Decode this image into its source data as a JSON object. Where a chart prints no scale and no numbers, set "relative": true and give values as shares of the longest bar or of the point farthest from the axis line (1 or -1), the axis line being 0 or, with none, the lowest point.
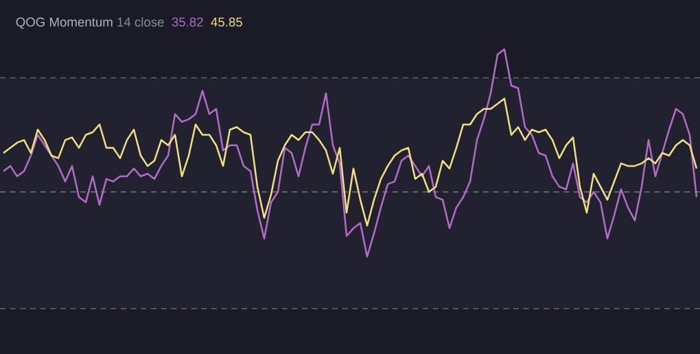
{
  "chart_data": {
    "type": "line",
    "title": "QOG Momentum",
    "subtitle": "14 close",
    "annotations": [
      "35.82",
      "45.85"
    ],
    "relative": true,
    "marker": "none",
    "line_style": "solid",
    "categories": [
      null,
      null,
      null,
      null,
      null,
      null,
      null,
      null,
      null,
      null,
      null,
      null,
      null,
      null,
      null,
      null,
      null,
      null,
      null,
      null,
      null,
      null,
      null,
      null,
      null,
      null,
      null,
      null,
      null,
      null,
      null,
      null,
      null,
      null,
      null,
      null,
      null,
      null,
      null,
      null,
      null,
      null,
      null,
      null,
      null,
      null,
      null,
      null,
      null,
      null,
      null,
      null,
      null,
      null,
      null,
      null,
      null,
      null,
      null,
      null,
      null,
      null,
      null,
      null,
      null,
      null,
      null,
      null,
      null,
      null,
      null,
      null,
      null,
      null,
      null,
      null,
      null,
      null,
      null,
      null,
      null,
      null,
      null,
      null,
      null,
      null,
      null,
      null,
      null,
      null,
      null,
      null,
      null,
      null,
      null,
      null,
      null,
      null,
      null,
      null,
      null,
      null
    ],
    "series": [
      {
        "color": "#b26cc8",
        "values": [
          0.53,
          0.55,
          0.51,
          0.53,
          0.59,
          0.67,
          0.63,
          0.59,
          0.55,
          0.49,
          0.55,
          0.43,
          0.41,
          0.51,
          0.4,
          0.5,
          0.49,
          0.51,
          0.51,
          0.54,
          0.51,
          0.52,
          0.5,
          0.55,
          0.59,
          0.75,
          0.72,
          0.73,
          0.75,
          0.84,
          0.75,
          0.77,
          0.61,
          0.63,
          0.63,
          0.55,
          0.53,
          0.38,
          0.27,
          0.41,
          0.45,
          0.62,
          0.6,
          0.51,
          0.62,
          0.71,
          0.71,
          0.83,
          0.63,
          0.56,
          0.28,
          0.31,
          0.33,
          0.2,
          0.29,
          0.39,
          0.48,
          0.49,
          0.57,
          0.59,
          0.55,
          0.51,
          0.55,
          0.43,
          0.42,
          0.31,
          0.39,
          0.43,
          0.49,
          0.65,
          0.73,
          0.83,
          0.98,
          1,
          0.86,
          0.85,
          0.7,
          0.67,
          0.6,
          0.59,
          0.51,
          0.47,
          0.46,
          0.56,
          0.43,
          0.41,
          0.45,
          0.41,
          0.27,
          0.36,
          0.46,
          0.39,
          0.34,
          0.47,
          0.65,
          0.51,
          0.6,
          0.69,
          0.77,
          0.75,
          0.67,
          0.43
        ]
      },
      {
        "color": "#f0e07e",
        "values": [
          0.6,
          0.62,
          0.64,
          0.65,
          0.6,
          0.69,
          0.65,
          0.59,
          0.58,
          0.65,
          0.66,
          0.62,
          0.67,
          0.68,
          0.71,
          0.62,
          0.62,
          0.58,
          0.65,
          0.69,
          0.59,
          0.55,
          0.57,
          0.65,
          0.63,
          0.67,
          0.51,
          0.59,
          0.71,
          0.67,
          0.67,
          0.63,
          0.55,
          0.69,
          0.7,
          0.68,
          0.67,
          0.47,
          0.35,
          0.44,
          0.57,
          0.63,
          0.67,
          0.65,
          0.68,
          0.68,
          0.65,
          0.61,
          0.52,
          0.62,
          0.37,
          0.54,
          0.42,
          0.32,
          0.42,
          0.5,
          0.55,
          0.59,
          0.61,
          0.62,
          0.5,
          0.52,
          0.45,
          0.47,
          0.57,
          0.54,
          0.62,
          0.71,
          0.71,
          0.75,
          0.77,
          0.77,
          0.79,
          0.81,
          0.67,
          0.7,
          0.65,
          0.69,
          0.68,
          0.69,
          0.65,
          0.58,
          0.63,
          0.66,
          0.47,
          0.37,
          0.52,
          0.47,
          0.42,
          0.49,
          0.56,
          0.55,
          0.55,
          0.56,
          0.58,
          0.56,
          0.6,
          0.59,
          0.63,
          0.65,
          0.63,
          0.54
        ]
      }
    ],
    "ref_lines": [
      {
        "axis": "y",
        "value": 0.89,
        "line_style": "dashed",
        "color": "#787b86"
      },
      {
        "axis": "y",
        "value": 0.45,
        "line_style": "dashed",
        "color": "#787b86"
      },
      {
        "axis": "y",
        "value": 0,
        "line_style": "dashed",
        "color": "#787b86"
      }
    ],
    "bands": [
      {
        "axis": "y",
        "from": 0,
        "to": 0.89,
        "color": "#21212f"
      }
    ]
  }
}
